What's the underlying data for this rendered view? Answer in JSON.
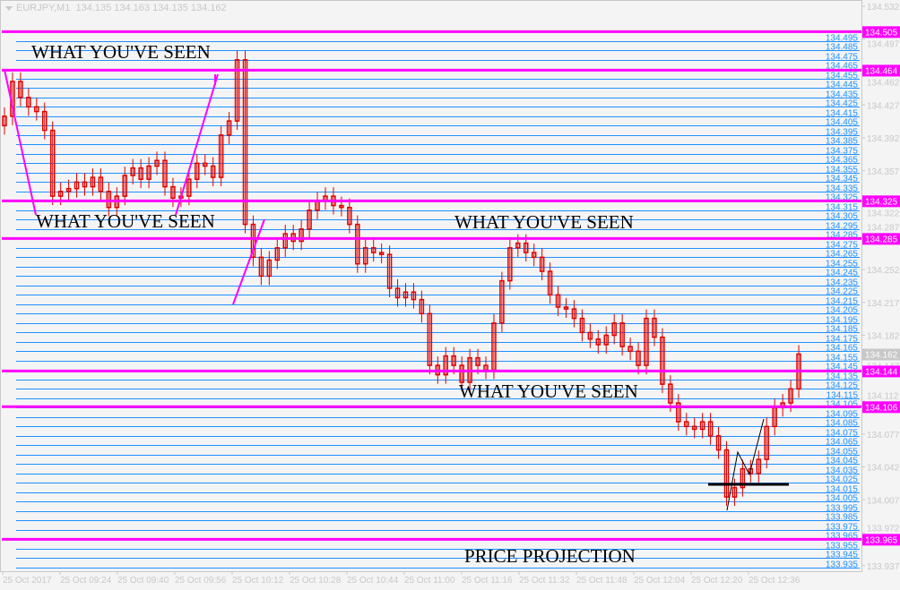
{
  "header": {
    "symbol": "EURJPY,M1",
    "ohlc": "134.135 134.163 134.135 134.162"
  },
  "colors": {
    "background": "#f4f4f4",
    "grid_line": "#1e90ff",
    "level_line": "#ff00ff",
    "candle": "#e00000",
    "axis_text": "#c8c8c8",
    "annotation_line": "#000000"
  },
  "chart_data": {
    "type": "candlestick",
    "symbol": "EURJPY",
    "timeframe": "M1",
    "ylim": [
      133.925,
      134.54
    ],
    "y_ticks": [
      "134.532",
      "134.497",
      "134.462",
      "134.427",
      "134.392",
      "134.357",
      "134.322",
      "134.287",
      "134.252",
      "134.217",
      "134.182",
      "134.147",
      "134.112",
      "134.077",
      "134.042",
      "134.007",
      "133.972",
      "133.937"
    ],
    "x_ticks": [
      "25 Oct 2017",
      "25 Oct 09:24",
      "25 Oct 09:40",
      "25 Oct 09:56",
      "25 Oct 10:12",
      "25 Oct 10:28",
      "25 Oct 10:44",
      "25 Oct 11:00",
      "25 Oct 11:16",
      "25 Oct 11:32",
      "25 Oct 11:48",
      "25 Oct 12:04",
      "25 Oct 12:20",
      "25 Oct 12:36"
    ],
    "current_price": "134.162",
    "close": [
      134.415,
      134.452,
      134.435,
      134.425,
      134.42,
      134.4,
      134.33,
      134.335,
      134.338,
      134.345,
      134.34,
      134.35,
      134.335,
      134.318,
      134.33,
      134.352,
      134.36,
      134.348,
      134.362,
      134.368,
      134.34,
      134.328,
      134.33,
      134.348,
      134.365,
      134.362,
      134.35,
      134.395,
      134.41,
      134.475,
      134.3,
      134.265,
      134.245,
      134.262,
      134.275,
      134.29,
      134.282,
      134.295,
      134.315,
      134.325,
      134.33,
      134.32,
      134.318,
      134.3,
      134.258,
      134.275,
      134.27,
      134.268,
      134.232,
      134.222,
      134.228,
      134.22,
      134.205,
      134.15,
      134.14,
      134.16,
      134.15,
      134.132,
      134.158,
      134.15,
      134.145,
      134.195,
      134.24,
      134.275,
      134.28,
      134.27,
      134.265,
      134.25,
      134.225,
      134.212,
      134.21,
      134.2,
      134.185,
      134.178,
      134.172,
      134.182,
      134.195,
      134.17,
      134.165,
      134.15,
      134.2,
      134.18,
      134.13,
      134.11,
      134.09,
      134.085,
      134.082,
      134.09,
      134.075,
      134.06,
      134.01,
      134.02,
      134.04,
      134.035,
      134.05,
      134.085,
      134.105,
      134.11,
      134.125,
      134.162
    ],
    "grid_levels": [
      "134.495",
      "134.485",
      "134.475",
      "134.465",
      "134.455",
      "134.445",
      "134.435",
      "134.425",
      "134.415",
      "134.405",
      "134.395",
      "134.385",
      "134.375",
      "134.365",
      "134.355",
      "134.345",
      "134.335",
      "134.325",
      "134.315",
      "134.305",
      "134.295",
      "134.285",
      "134.275",
      "134.265",
      "134.255",
      "134.245",
      "134.235",
      "134.225",
      "134.215",
      "134.205",
      "134.195",
      "134.185",
      "134.175",
      "134.165",
      "134.155",
      "134.145",
      "134.135",
      "134.125",
      "134.115",
      "134.105",
      "134.095",
      "134.085",
      "134.075",
      "134.065",
      "134.055",
      "134.045",
      "134.035",
      "134.025",
      "134.015",
      "134.005",
      "133.995",
      "133.985",
      "133.975",
      "133.965",
      "133.955",
      "133.945",
      "133.935"
    ],
    "levels": [
      "134.505",
      "134.464",
      "134.325",
      "134.285",
      "134.144",
      "134.106",
      "133.965"
    ],
    "annotations": [
      {
        "text": "WHAT YOU'VE SEEN",
        "price": 134.48,
        "time_index": 3
      },
      {
        "text": "WHAT YOU'VE SEEN",
        "price": 134.3,
        "time_index": 4
      },
      {
        "text": "WHAT YOU'VE SEEN",
        "price": 134.299,
        "time_index": 57
      },
      {
        "text": "WHAT YOU'VE SEEN",
        "price": 134.118,
        "time_index": 57
      },
      {
        "text": "PRICE PROJECTION",
        "price": 133.943,
        "time_index": 57
      }
    ]
  }
}
